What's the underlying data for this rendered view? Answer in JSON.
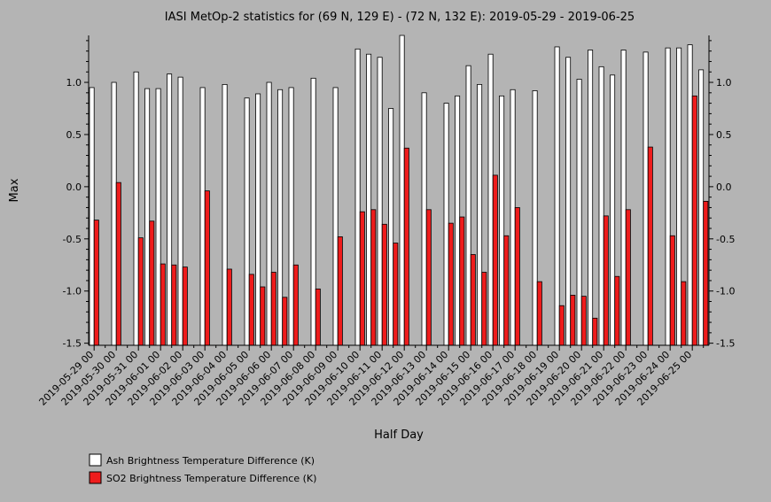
{
  "chart_data": {
    "type": "bar",
    "title": "IASI MetOp-2 statistics for (69 N, 129 E) - (72 N, 132 E): 2019-05-29 - 2019-06-25",
    "xlabel": "Half Day",
    "ylabel": "Max",
    "ylim": [
      -1.52,
      1.45
    ],
    "y_ticks": [
      "1.0",
      "0.5",
      "0.0",
      "-0.5",
      "-1.0",
      "-1.5"
    ],
    "y_tick_values": [
      1.0,
      0.5,
      0.0,
      -0.5,
      -1.0,
      -1.5
    ],
    "grid": false,
    "legend_position": "bottom-left",
    "categories": [
      "2019-05-29 00",
      "2019-05-29 12",
      "2019-05-30 00",
      "2019-05-30 12",
      "2019-05-31 00",
      "2019-05-31 12",
      "2019-06-01 00",
      "2019-06-01 12",
      "2019-06-02 00",
      "2019-06-02 12",
      "2019-06-03 00",
      "2019-06-03 12",
      "2019-06-04 00",
      "2019-06-04 12",
      "2019-06-05 00",
      "2019-06-05 12",
      "2019-06-06 00",
      "2019-06-06 12",
      "2019-06-07 00",
      "2019-06-07 12",
      "2019-06-08 00",
      "2019-06-08 12",
      "2019-06-09 00",
      "2019-06-09 12",
      "2019-06-10 00",
      "2019-06-10 12",
      "2019-06-11 00",
      "2019-06-11 12",
      "2019-06-12 00",
      "2019-06-12 12",
      "2019-06-13 00",
      "2019-06-13 12",
      "2019-06-14 00",
      "2019-06-14 12",
      "2019-06-15 00",
      "2019-06-15 12",
      "2019-06-16 00",
      "2019-06-16 12",
      "2019-06-17 00",
      "2019-06-17 12",
      "2019-06-18 00",
      "2019-06-18 12",
      "2019-06-19 00",
      "2019-06-19 12",
      "2019-06-20 00",
      "2019-06-20 12",
      "2019-06-21 00",
      "2019-06-21 12",
      "2019-06-22 00",
      "2019-06-22 12",
      "2019-06-23 00",
      "2019-06-23 12",
      "2019-06-24 00",
      "2019-06-24 12",
      "2019-06-25 00",
      "2019-06-25 12"
    ],
    "x_tick_labels": [
      "2019-05-29 00",
      "2019-05-30 00",
      "2019-05-31 00",
      "2019-06-01 00",
      "2019-06-02 00",
      "2019-06-03 00",
      "2019-06-04 00",
      "2019-06-05 00",
      "2019-06-06 00",
      "2019-06-07 00",
      "2019-06-08 00",
      "2019-06-09 00",
      "2019-06-10 00",
      "2019-06-11 00",
      "2019-06-12 00",
      "2019-06-13 00",
      "2019-06-14 00",
      "2019-06-15 00",
      "2019-06-16 00",
      "2019-06-17 00",
      "2019-06-18 00",
      "2019-06-19 00",
      "2019-06-20 00",
      "2019-06-21 00",
      "2019-06-22 00",
      "2019-06-23 00",
      "2019-06-24 00",
      "2019-06-25 00"
    ],
    "series": [
      {
        "name": "Ash Brightness Temperature Difference (K)",
        "color": "#ffffff",
        "values": [
          0.95,
          null,
          1.0,
          null,
          1.1,
          0.94,
          0.94,
          1.08,
          1.05,
          null,
          0.95,
          null,
          0.98,
          null,
          0.85,
          0.89,
          1.0,
          0.93,
          0.95,
          null,
          1.04,
          null,
          0.95,
          null,
          1.32,
          1.27,
          1.24,
          0.75,
          1.45,
          null,
          0.9,
          null,
          0.8,
          0.87,
          1.16,
          0.98,
          1.27,
          0.87,
          0.93,
          null,
          0.92,
          null,
          1.34,
          1.24,
          1.03,
          1.31,
          1.15,
          1.07,
          1.31,
          null,
          1.29,
          null,
          1.33,
          1.33,
          1.36,
          1.12
        ]
      },
      {
        "name": "SO2 Brightness Temperature Difference (K)",
        "color": "#ee1c1c",
        "values": [
          -0.32,
          null,
          0.04,
          null,
          -0.49,
          -0.33,
          -0.74,
          -0.75,
          -0.77,
          null,
          -0.04,
          null,
          -0.79,
          null,
          -0.84,
          -0.96,
          -0.82,
          -1.06,
          -0.75,
          null,
          -0.98,
          null,
          -0.48,
          null,
          -0.24,
          -0.22,
          -0.36,
          -0.54,
          0.37,
          null,
          -0.22,
          null,
          -0.35,
          -0.29,
          -0.65,
          -0.82,
          0.11,
          -0.47,
          -0.2,
          null,
          -0.91,
          null,
          -1.14,
          -1.04,
          -1.05,
          -1.26,
          -0.28,
          -0.86,
          -0.22,
          null,
          0.38,
          null,
          -0.47,
          -0.91,
          0.87,
          -0.14
        ]
      }
    ]
  }
}
